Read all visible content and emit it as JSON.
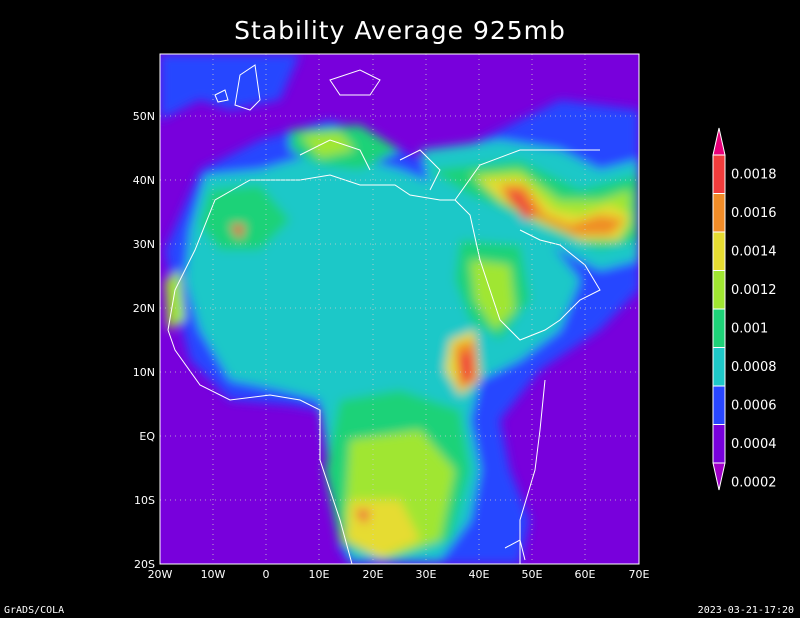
{
  "title": "Stability Average 925mb",
  "x_ticks": [
    "20W",
    "10W",
    "0",
    "10E",
    "20E",
    "30E",
    "40E",
    "50E",
    "60E",
    "70E"
  ],
  "y_ticks": [
    "50N",
    "40N",
    "30N",
    "20N",
    "10N",
    "EQ",
    "10S",
    "20S"
  ],
  "colorbar": {
    "labels": [
      "0.0018",
      "0.0016",
      "0.0014",
      "0.0012",
      "0.001",
      "0.0008",
      "0.0006",
      "0.0004",
      "0.0002"
    ],
    "colors": [
      "#e8007a",
      "#f03c3c",
      "#f08c28",
      "#e6dc32",
      "#a0e632",
      "#1ed278",
      "#1ec8c8",
      "#2846ff",
      "#7800dc",
      "#a000c8"
    ]
  },
  "footer_left": "GrADS/COLA",
  "footer_right": "2023-03-21-17:20"
}
